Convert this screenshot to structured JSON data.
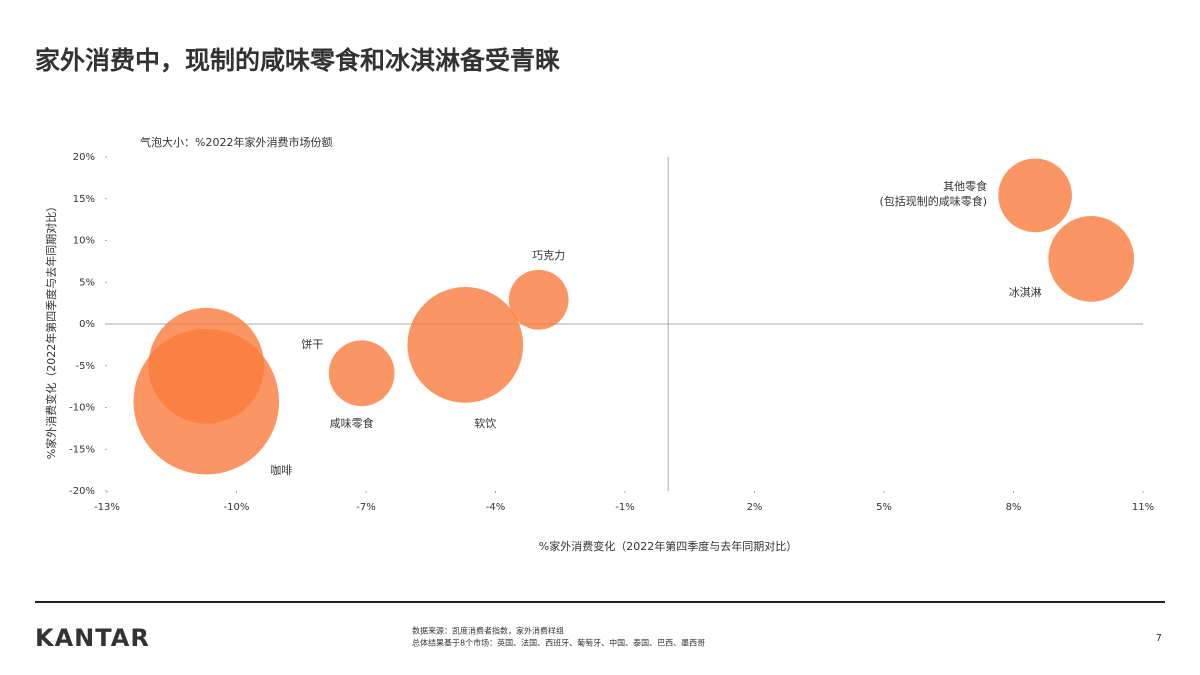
{
  "header": {
    "title": "家外消费中，现制的咸味零食和冰淇淋备受青睐"
  },
  "chart_data": {
    "type": "bubble",
    "size_note": "气泡大小：%2022年家外消费市场份额",
    "x_label": "%家外消费变化（2022年第四季度与去年同期对比）",
    "y_label": "%家外消费变化（2022年第四季度与去年同期对比）",
    "categories": [
      "饼干",
      "咖啡",
      "咸味零食",
      "软饮",
      "巧克力",
      "其他零食\n(包括现制的咸味零食)",
      "冰淇淋"
    ],
    "x": [
      -10.7,
      -10.7,
      -7.1,
      -4.7,
      -3.0,
      8.5,
      9.8
    ],
    "values": [
      -5.0,
      -9.3,
      -5.9,
      -2.5,
      2.9,
      15.4,
      7.8
    ],
    "sizes": [
      19.5,
      30.9,
      6.3,
      19.5,
      5.2,
      7.9,
      10.7
    ],
    "color": "#fa7a3c",
    "xlim": [
      -13,
      11
    ],
    "xticks": [
      {
        "value": -13,
        "label": "-13%"
      },
      {
        "value": -10,
        "label": "-10%"
      },
      {
        "value": -7,
        "label": "-7%"
      },
      {
        "value": -4,
        "label": "-4%"
      },
      {
        "value": -1,
        "label": "-1%"
      },
      {
        "value": 2,
        "label": "2%"
      },
      {
        "value": 5,
        "label": "5%"
      },
      {
        "value": 8,
        "label": "8%"
      },
      {
        "value": 11,
        "label": "11%"
      }
    ],
    "ylim": [
      -20,
      20
    ],
    "yticks": [
      {
        "value": 20,
        "label": "20%"
      },
      {
        "value": 15,
        "label": "15%"
      },
      {
        "value": 10,
        "label": "10%"
      },
      {
        "value": 5,
        "label": "5%"
      },
      {
        "value": 0,
        "label": "0%"
      },
      {
        "value": -5,
        "label": "-5%"
      },
      {
        "value": -10,
        "label": "-10%"
      },
      {
        "value": -15,
        "label": "-15%"
      },
      {
        "value": -20,
        "label": "-20%"
      }
    ]
  },
  "footer": {
    "logo": "KANTAR",
    "source": [
      "数据来源：凯度消费者指数，家外消费样组",
      "总体结果基于8个市场：英国、法国、西班牙、葡萄牙、中国、泰国、巴西、墨西哥"
    ],
    "page_number": "7"
  }
}
